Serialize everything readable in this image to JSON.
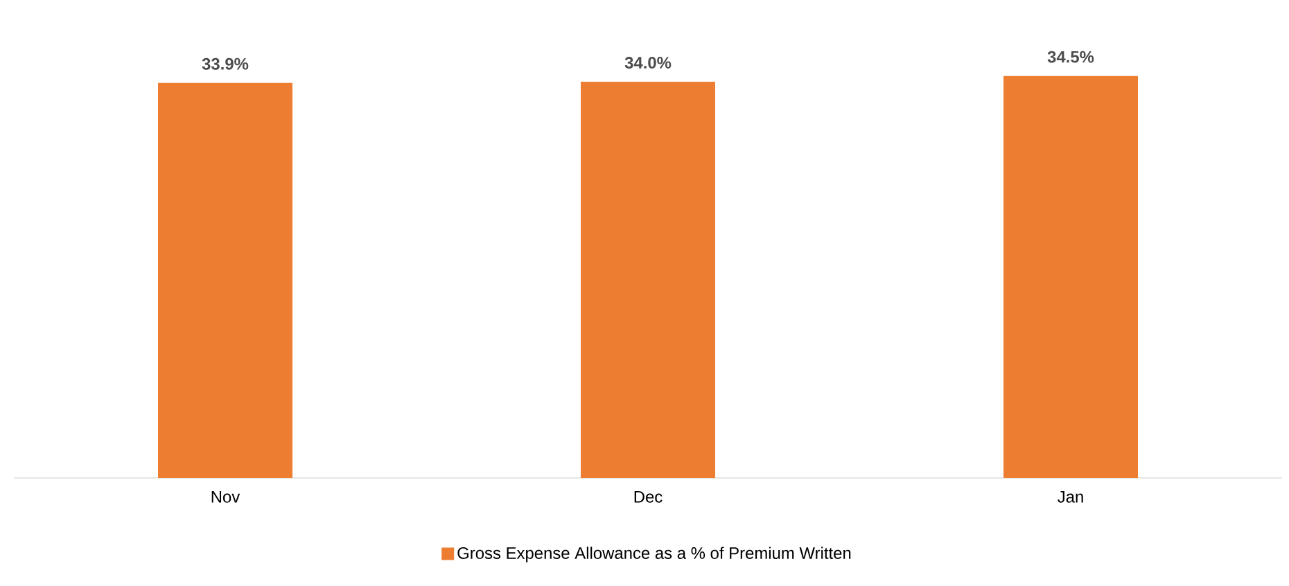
{
  "chart_data": {
    "type": "bar",
    "categories": [
      "Nov",
      "Dec",
      "Jan"
    ],
    "series": [
      {
        "name": "Gross Expense Allowance as a % of Premium Written",
        "color": "#ed7d31",
        "values": [
          33.9,
          34.0,
          34.5
        ],
        "value_labels": [
          "33.9%",
          "34.0%",
          "34.5%"
        ]
      }
    ],
    "legend": "bottom"
  }
}
